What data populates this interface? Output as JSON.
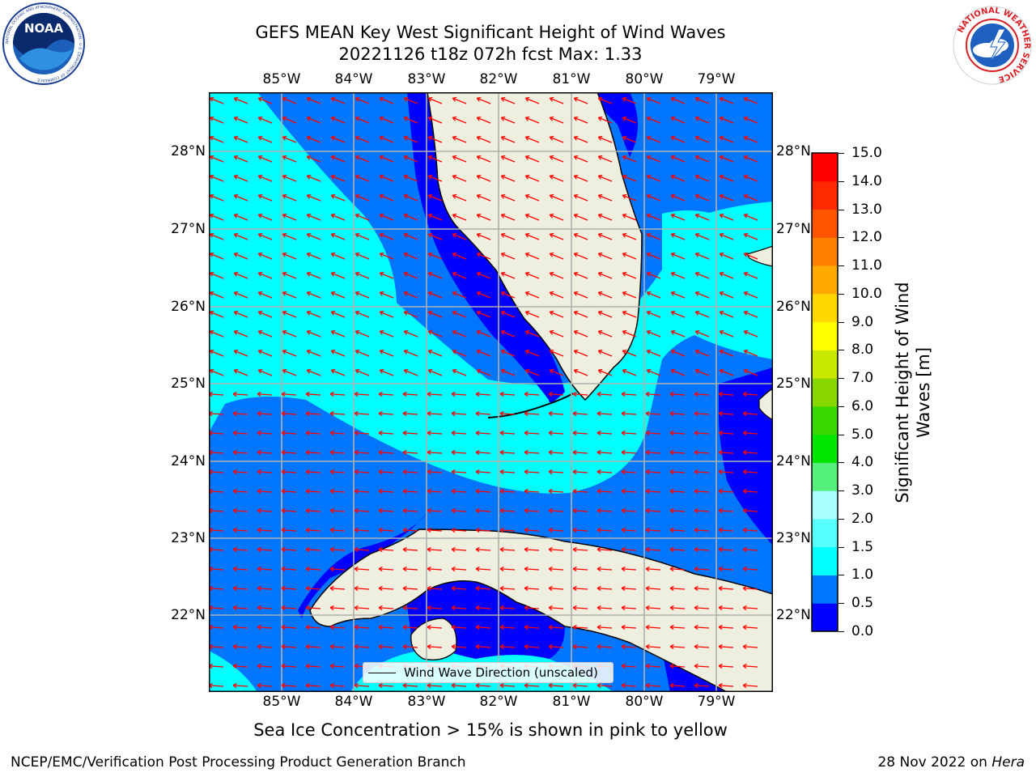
{
  "title": {
    "line1": "GEFS MEAN Key West Significant Height of Wind Waves",
    "line2": "20221126 t18z 072h fcst   Max: 1.33"
  },
  "logos": {
    "noaa_text": "NOAA",
    "noaa_ring": "NATIONAL OCEANIC AND ATMOSPHERIC ADMINISTRATION · U.S. DEPARTMENT OF COMMERCE",
    "nws_ring": "NATIONAL WEATHER SERVICE"
  },
  "map": {
    "lon_labels": [
      "85°W",
      "84°W",
      "83°W",
      "82°W",
      "81°W",
      "80°W",
      "79°W"
    ],
    "lat_labels": [
      "28°N",
      "27°N",
      "26°N",
      "25°N",
      "24°N",
      "23°N",
      "22°N"
    ],
    "extent": {
      "lon_min": -86.0,
      "lon_max": -78.3,
      "lat_min": 21.0,
      "lat_max": 28.75
    },
    "grid": true,
    "land_color": "#efefdf",
    "arrow_color": "#ff0000",
    "legend_label": "Wind Wave Direction (unscaled)",
    "legend_position": "lower-center"
  },
  "colorbar": {
    "label": "Significant Height of Wind Waves [m]",
    "label_line1": "Significant Height of Wind",
    "label_line2": "Waves [m]",
    "ticks": [
      "0.0",
      "0.5",
      "1.0",
      "1.5",
      "2.0",
      "3.0",
      "4.0",
      "5.0",
      "6.0",
      "7.0",
      "8.0",
      "9.0",
      "10.0",
      "11.0",
      "12.0",
      "13.0",
      "14.0",
      "15.0"
    ],
    "colors": [
      "#0000ff",
      "#0076ff",
      "#00ffff",
      "#55ffff",
      "#aaffff",
      "#55f07c",
      "#00e500",
      "#3bd800",
      "#88d800",
      "#c8e800",
      "#ffff00",
      "#ffd800",
      "#ffaa00",
      "#ff8000",
      "#ff5500",
      "#ff2a00",
      "#ff0000"
    ]
  },
  "footer": {
    "note": "Sea Ice Concentration > 15% is shown in pink to yellow",
    "left": "NCEP/EMC/Verification Post Processing Product Generation Branch",
    "right_prefix": "28 Nov 2022 on ",
    "right_italic": "Hera"
  }
}
